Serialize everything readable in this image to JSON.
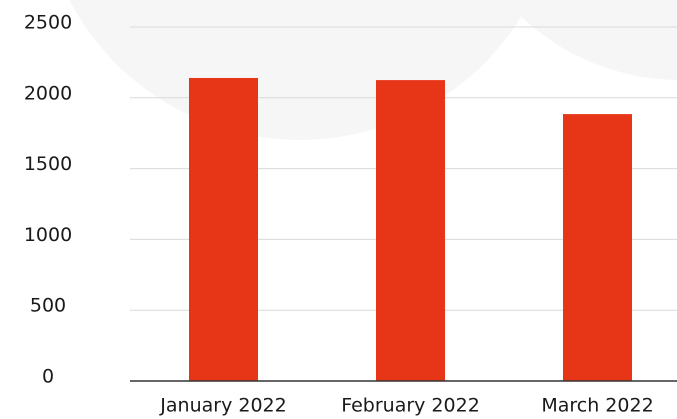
{
  "chart_data": {
    "type": "bar",
    "categories": [
      "January 2022",
      "February 2022",
      "March 2022"
    ],
    "values": [
      2140,
      2125,
      1885
    ],
    "color": "#e63517",
    "ylim": [
      0,
      2500
    ],
    "yticks": [
      0,
      500,
      1000,
      1500,
      2000,
      2500
    ],
    "grid": true
  }
}
